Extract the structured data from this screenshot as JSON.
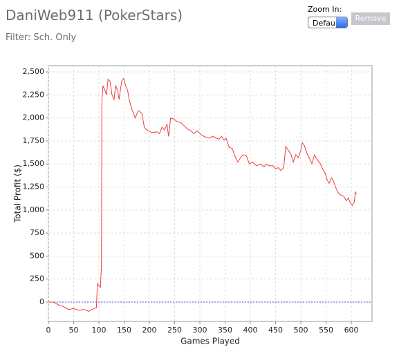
{
  "header": {
    "title": "DaniWeb911 (PokerStars)",
    "filter": "Filter: Sch. Only"
  },
  "controls": {
    "zoom_label": "Zoom In:",
    "select_value": "Defau",
    "button": "Remove"
  },
  "chart_data": {
    "type": "line",
    "xlabel": "Games Played",
    "ylabel": "Total Profit ($)",
    "color": "#f03c3c",
    "x": [
      0,
      10,
      20,
      30,
      40,
      50,
      60,
      70,
      80,
      90,
      95,
      97,
      100,
      103,
      105,
      106,
      108,
      112,
      115,
      118,
      122,
      126,
      130,
      133,
      137,
      140,
      145,
      149,
      153,
      157,
      160,
      165,
      172,
      178,
      185,
      190,
      195,
      205,
      215,
      220,
      225,
      230,
      235,
      238,
      242,
      248,
      255,
      262,
      268,
      275,
      280,
      288,
      295,
      302,
      308,
      318,
      325,
      333,
      338,
      343,
      348,
      352,
      358,
      364,
      370,
      375,
      382,
      386,
      392,
      398,
      405,
      412,
      420,
      427,
      432,
      437,
      445,
      450,
      455,
      460,
      466,
      470,
      475,
      480,
      485,
      490,
      495,
      500,
      503,
      507,
      512,
      518,
      522,
      527,
      532,
      538,
      542,
      548,
      552,
      556,
      561,
      565,
      570,
      575,
      580,
      585,
      590,
      594,
      598,
      602,
      606,
      608,
      610
    ],
    "values": [
      0,
      0,
      -30,
      -50,
      -80,
      -70,
      -90,
      -80,
      -100,
      -70,
      -60,
      200,
      180,
      160,
      400,
      2200,
      2350,
      2300,
      2250,
      2420,
      2400,
      2250,
      2200,
      2350,
      2300,
      2200,
      2400,
      2430,
      2350,
      2300,
      2200,
      2100,
      2000,
      2080,
      2050,
      1900,
      1870,
      1840,
      1850,
      1830,
      1900,
      1870,
      1930,
      1800,
      2000,
      1990,
      1960,
      1950,
      1920,
      1880,
      1870,
      1830,
      1860,
      1820,
      1800,
      1780,
      1800,
      1780,
      1770,
      1800,
      1760,
      1780,
      1680,
      1670,
      1580,
      1520,
      1580,
      1600,
      1590,
      1500,
      1520,
      1480,
      1500,
      1470,
      1500,
      1480,
      1480,
      1450,
      1460,
      1430,
      1460,
      1690,
      1650,
      1610,
      1520,
      1600,
      1570,
      1650,
      1730,
      1700,
      1620,
      1550,
      1500,
      1600,
      1550,
      1510,
      1460,
      1400,
      1330,
      1290,
      1350,
      1310,
      1230,
      1180,
      1160,
      1150,
      1100,
      1130,
      1080,
      1050,
      1090,
      1200,
      1170
    ],
    "xlim": [
      0,
      641
    ],
    "ylim": [
      -210,
      2568
    ],
    "xticks": [
      0,
      50,
      100,
      150,
      200,
      250,
      300,
      350,
      400,
      450,
      500,
      550,
      600
    ],
    "yticks": [
      0,
      250,
      500,
      750,
      {
        "value": 1000,
        "label": "1,000"
      },
      {
        "value": 1250,
        "label": "1,250"
      },
      {
        "value": 1500,
        "label": "1,500"
      },
      {
        "value": 1750,
        "label": "1,750"
      },
      {
        "value": 2000,
        "label": "2,000"
      },
      {
        "value": 2250,
        "label": "2,250"
      },
      {
        "value": 2500,
        "label": "2,500"
      }
    ],
    "grid": true,
    "reference_line": {
      "value": 0,
      "color": "#4a4ad6"
    }
  }
}
